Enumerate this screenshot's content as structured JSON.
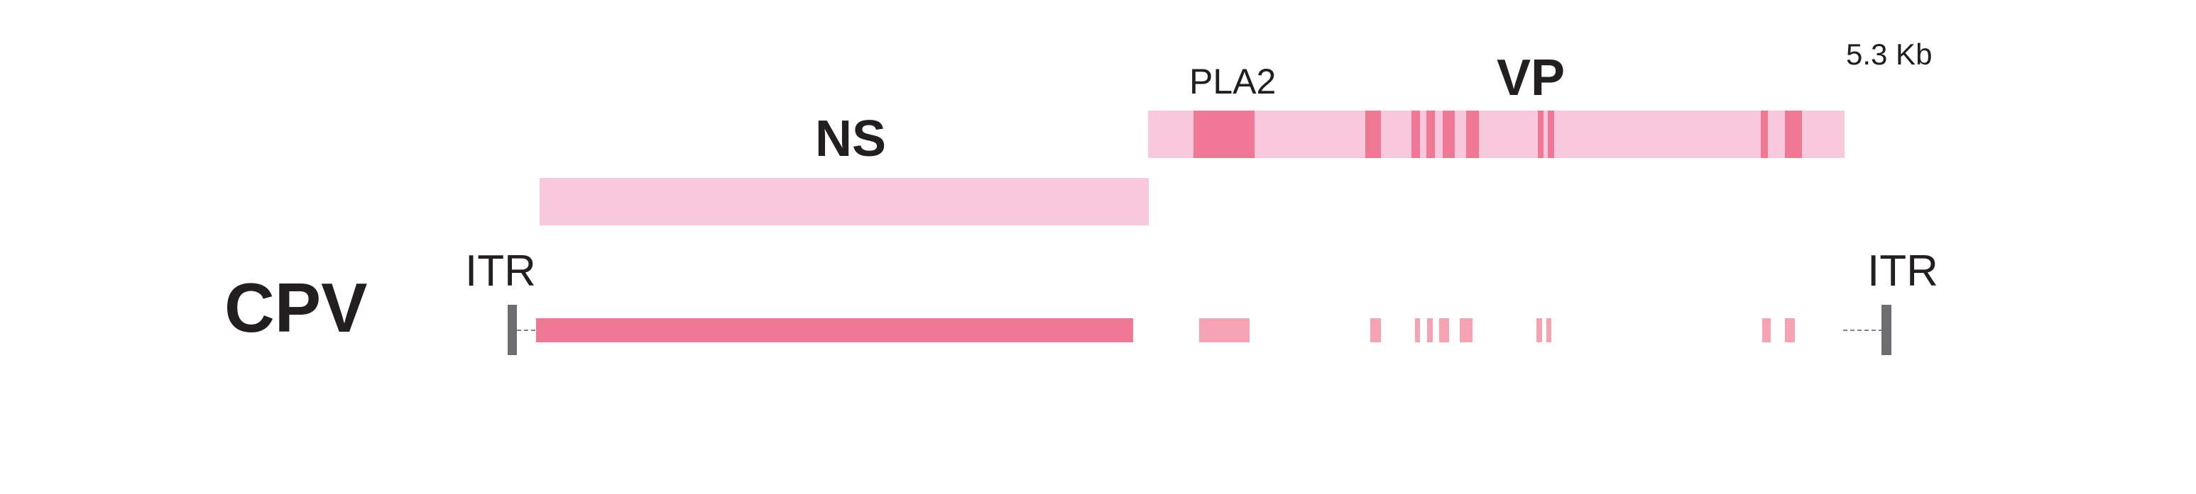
{
  "genome": {
    "title": "CPV",
    "size_label": "5.3 Kb",
    "length_kb": 5.3,
    "itr_left": "ITR",
    "itr_right": "ITR"
  },
  "genes": {
    "ns": {
      "label": "NS"
    },
    "vp": {
      "label": "VP",
      "domain_label": "PLA2"
    }
  },
  "colors": {
    "genome_bar": "#f07895",
    "genome_light_segment": "#f5a3b3",
    "gene_bar": "#f8c8dc",
    "gene_dark_segment": "#f07895",
    "itr": "#6d6e71",
    "dash": "#808285",
    "text": "#231f20"
  }
}
